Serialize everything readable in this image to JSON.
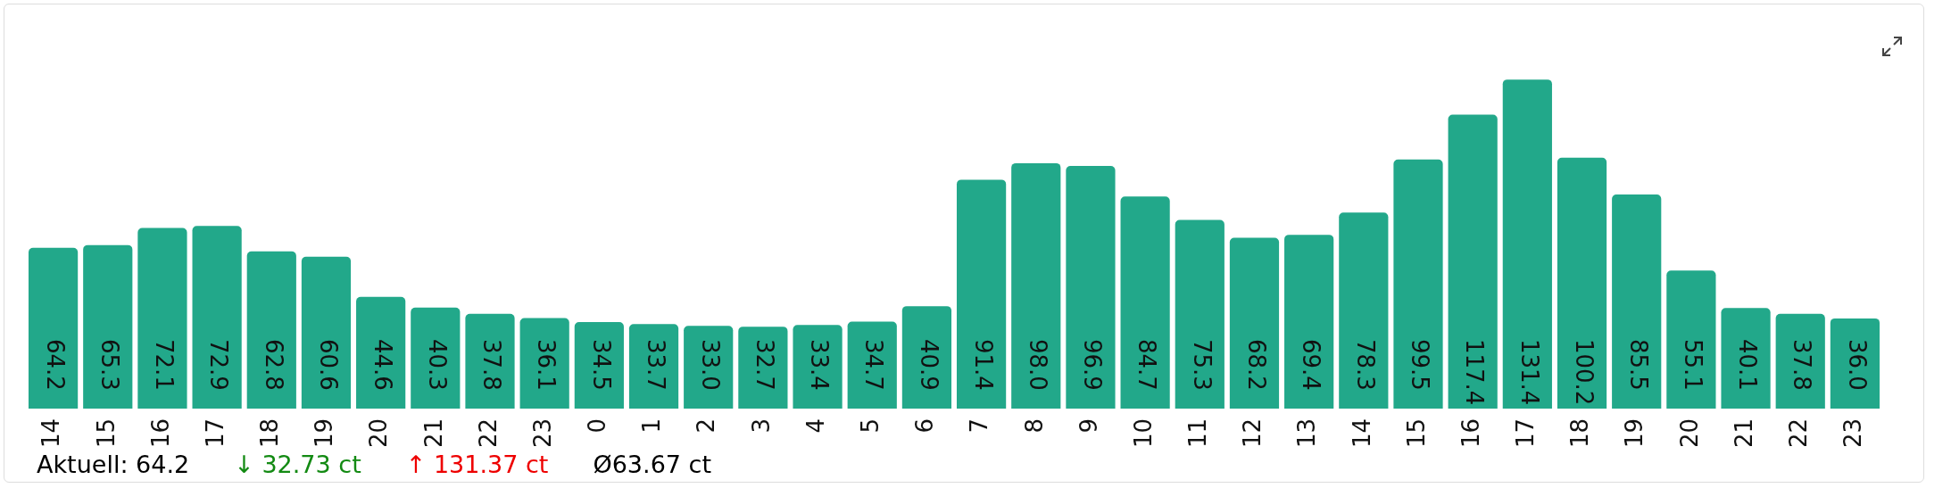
{
  "chart_data": {
    "type": "bar",
    "categories": [
      "14",
      "15",
      "16",
      "17",
      "18",
      "19",
      "20",
      "21",
      "22",
      "23",
      "0",
      "1",
      "2",
      "3",
      "4",
      "5",
      "6",
      "7",
      "8",
      "9",
      "10",
      "11",
      "12",
      "13",
      "14",
      "15",
      "16",
      "17",
      "18",
      "19",
      "20",
      "21",
      "22",
      "23"
    ],
    "values": [
      64.2,
      65.3,
      72.1,
      72.9,
      62.8,
      60.6,
      44.6,
      40.3,
      37.8,
      36.1,
      34.5,
      33.7,
      33.0,
      32.7,
      33.4,
      34.7,
      40.9,
      91.4,
      98.0,
      96.9,
      84.7,
      75.3,
      68.2,
      69.4,
      78.3,
      99.5,
      117.4,
      131.4,
      100.2,
      85.5,
      55.1,
      40.1,
      37.8,
      36.0
    ],
    "color": "#22a88a",
    "value_labels": [
      "64.2",
      "65.3",
      "72.1",
      "72.9",
      "62.8",
      "60.6",
      "44.6",
      "40.3",
      "37.8",
      "36.1",
      "34.5",
      "33.7",
      "33.0",
      "32.7",
      "33.4",
      "34.7",
      "40.9",
      "91.4",
      "98.0",
      "96.9",
      "84.7",
      "75.3",
      "68.2",
      "69.4",
      "78.3",
      "99.5",
      "117.4",
      "131.4",
      "100.2",
      "85.5",
      "55.1",
      "40.1",
      "37.8",
      "36.0"
    ],
    "tick_labels": "x",
    "grid": false,
    "legend": false,
    "annotations": [
      "Aktuell: 64.2",
      "↓ 32.73 ct",
      "↑ 131.37 ct",
      "Ø63.67 ct"
    ]
  }
}
